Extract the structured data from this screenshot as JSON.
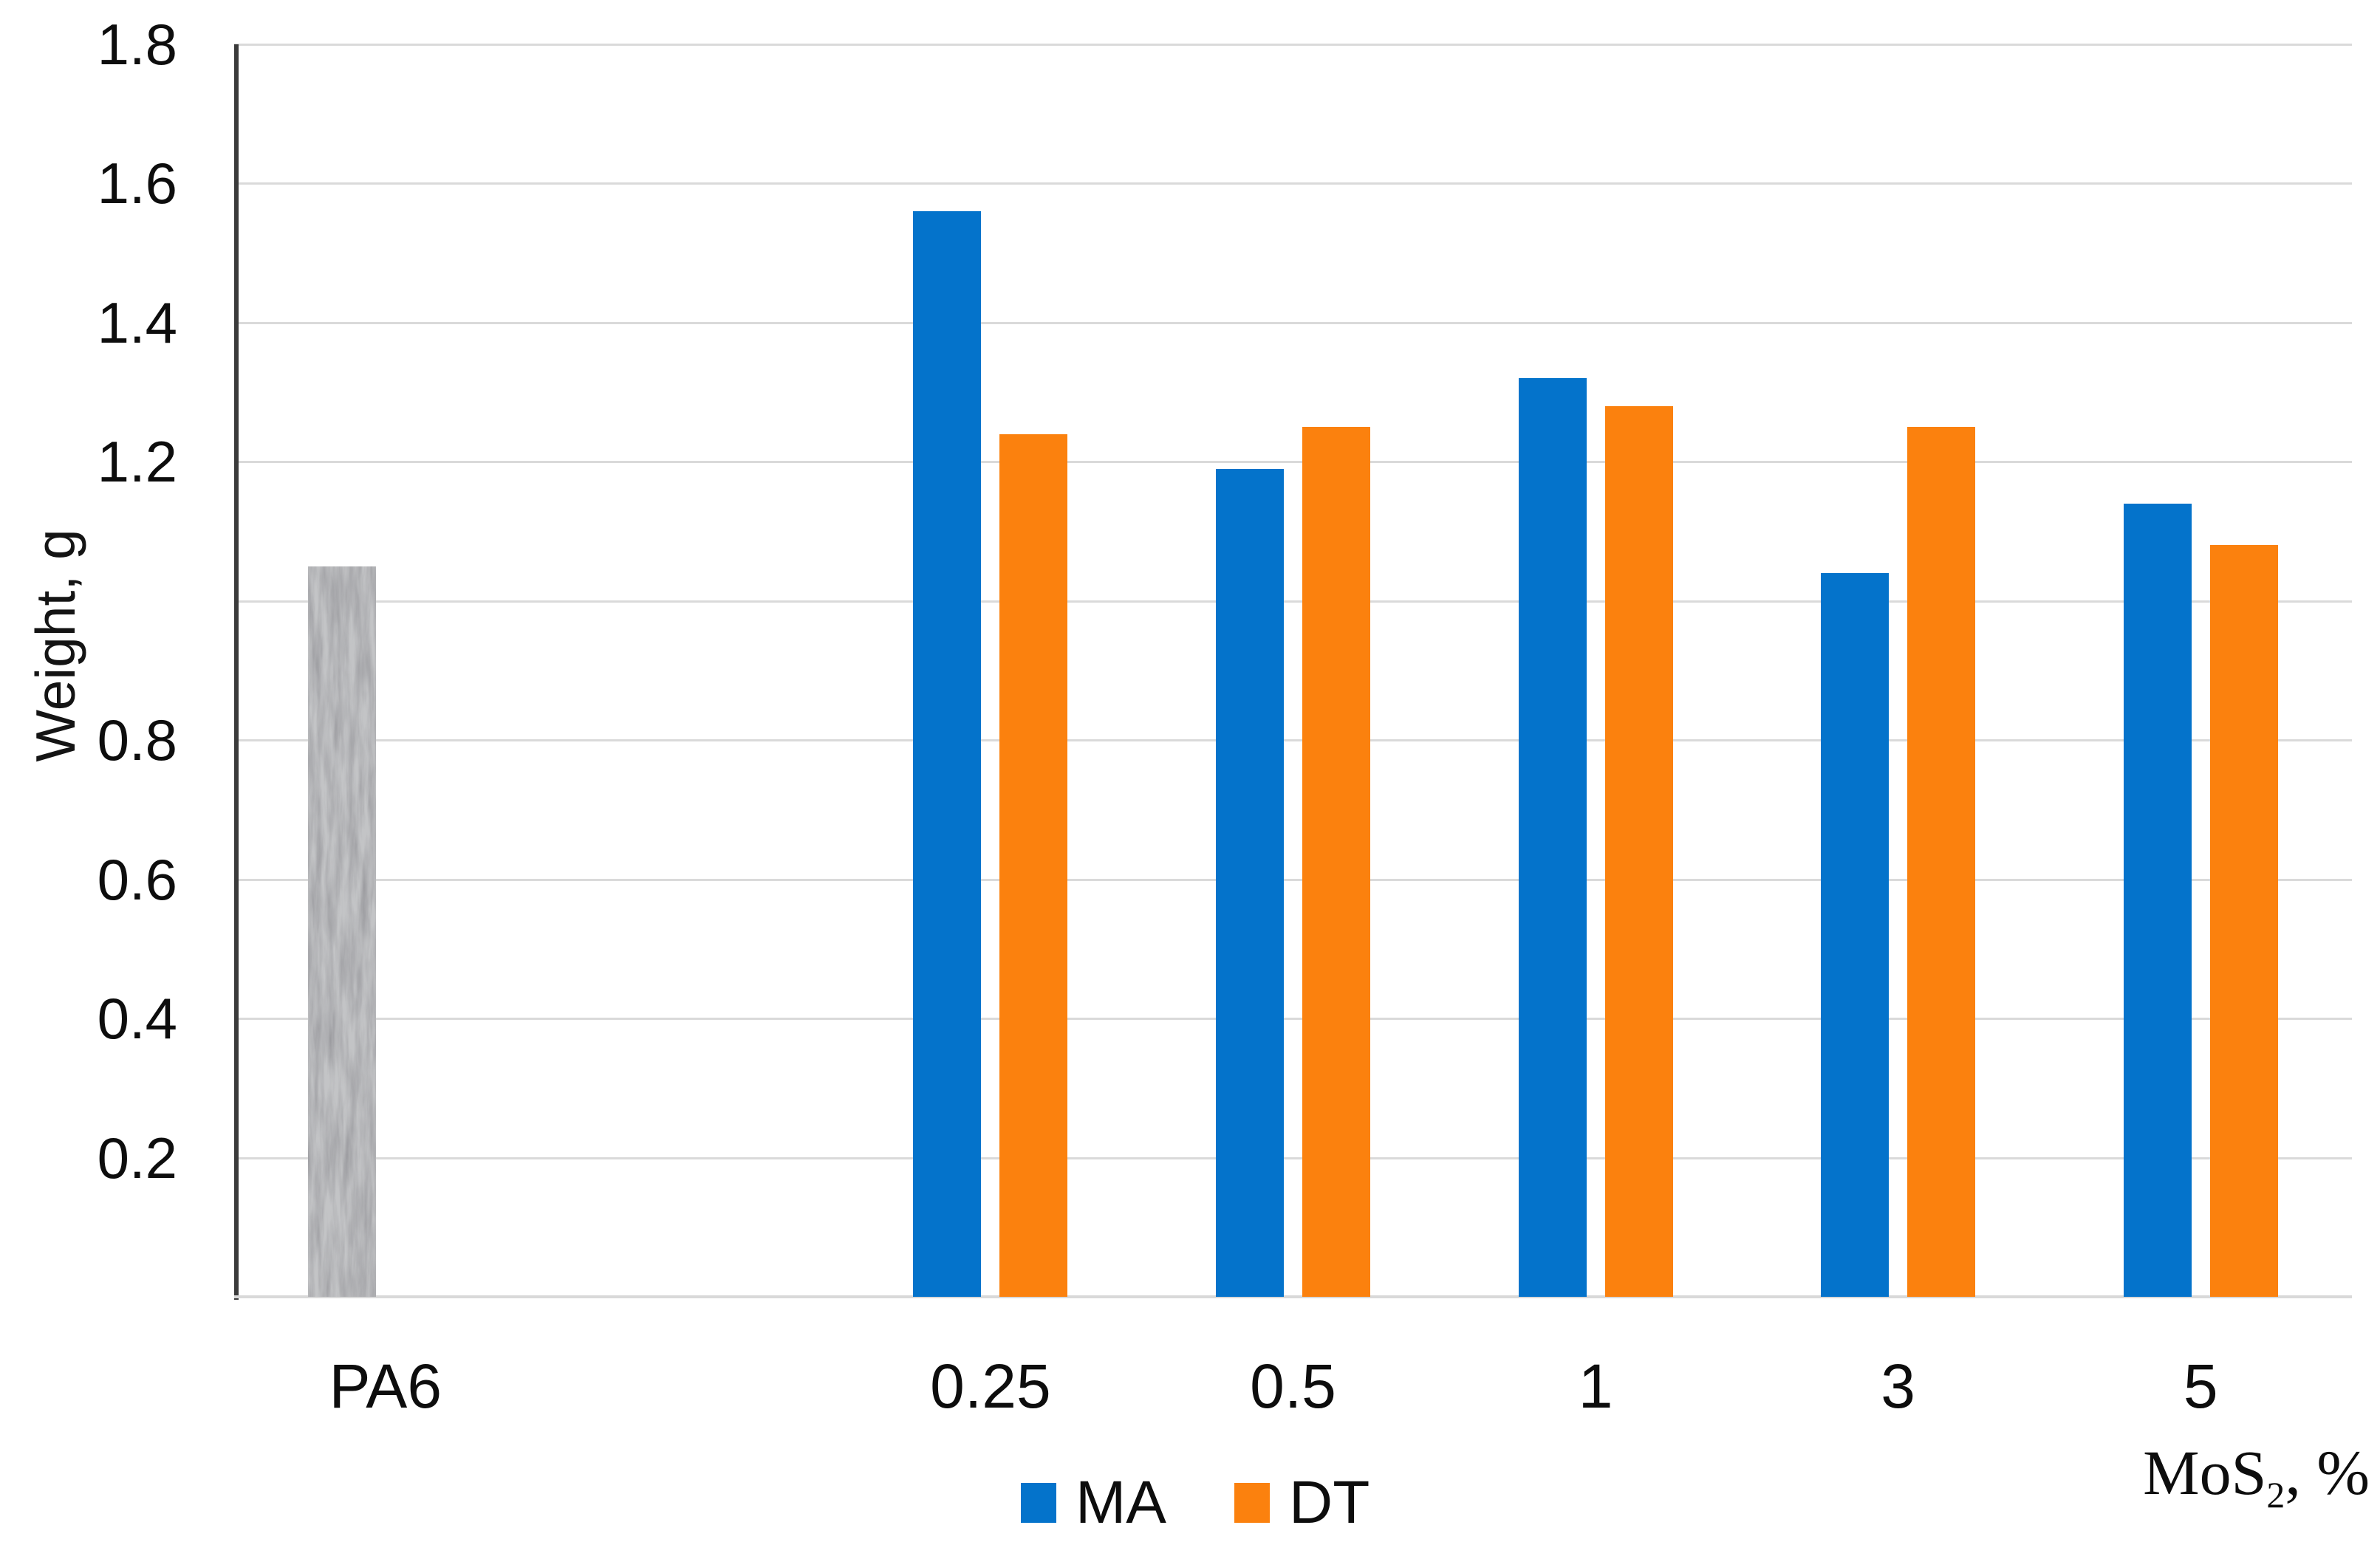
{
  "figure": {
    "y_axis": {
      "title": "Weight, g",
      "ticks": [
        {
          "label": "1.8",
          "value": 1.8
        },
        {
          "label": "1.6",
          "value": 1.6
        },
        {
          "label": "1.4",
          "value": 1.4
        },
        {
          "label": "1.2",
          "value": 1.2
        },
        {
          "label": "0.8",
          "value": 0.8
        },
        {
          "label": "0.6",
          "value": 0.6
        },
        {
          "label": "0.4",
          "value": 0.4
        },
        {
          "label": "0.2",
          "value": 0.2
        }
      ]
    },
    "x_axis": {
      "title_prefix": "MoS",
      "title_sub": "2",
      "title_suffix": ", %"
    },
    "legend": [
      {
        "label": "MA",
        "color": "#0473CB"
      },
      {
        "label": "DT",
        "color": "#FB810E"
      }
    ]
  },
  "chart_data": {
    "type": "bar",
    "title": "",
    "xlabel": "MoS2, %",
    "ylabel": "Weight, g",
    "ylim": [
      0,
      1.8
    ],
    "ytick_step": 0.2,
    "ytick_labels_shown": [
      "1.8",
      "1.6",
      "1.4",
      "1.2",
      "0.8",
      "0.6",
      "0.4",
      "0.2"
    ],
    "grid": true,
    "legend_position": "bottom",
    "categories": [
      "PA6",
      "",
      "0.25",
      "0.5",
      "1",
      "3",
      "5"
    ],
    "series": [
      {
        "name": "PA6",
        "color": "#c3c4c6",
        "textured": true,
        "in_legend": false,
        "position": "left",
        "values": [
          1.05,
          null,
          null,
          null,
          null,
          null,
          null
        ]
      },
      {
        "name": "MA",
        "color": "#0473CB",
        "textured": false,
        "in_legend": true,
        "position": "left",
        "values": [
          null,
          null,
          1.56,
          1.19,
          1.32,
          1.04,
          1.14
        ]
      },
      {
        "name": "DT",
        "color": "#FB810E",
        "textured": false,
        "in_legend": true,
        "position": "right",
        "values": [
          null,
          null,
          1.24,
          1.25,
          1.28,
          1.25,
          1.08
        ]
      }
    ]
  }
}
